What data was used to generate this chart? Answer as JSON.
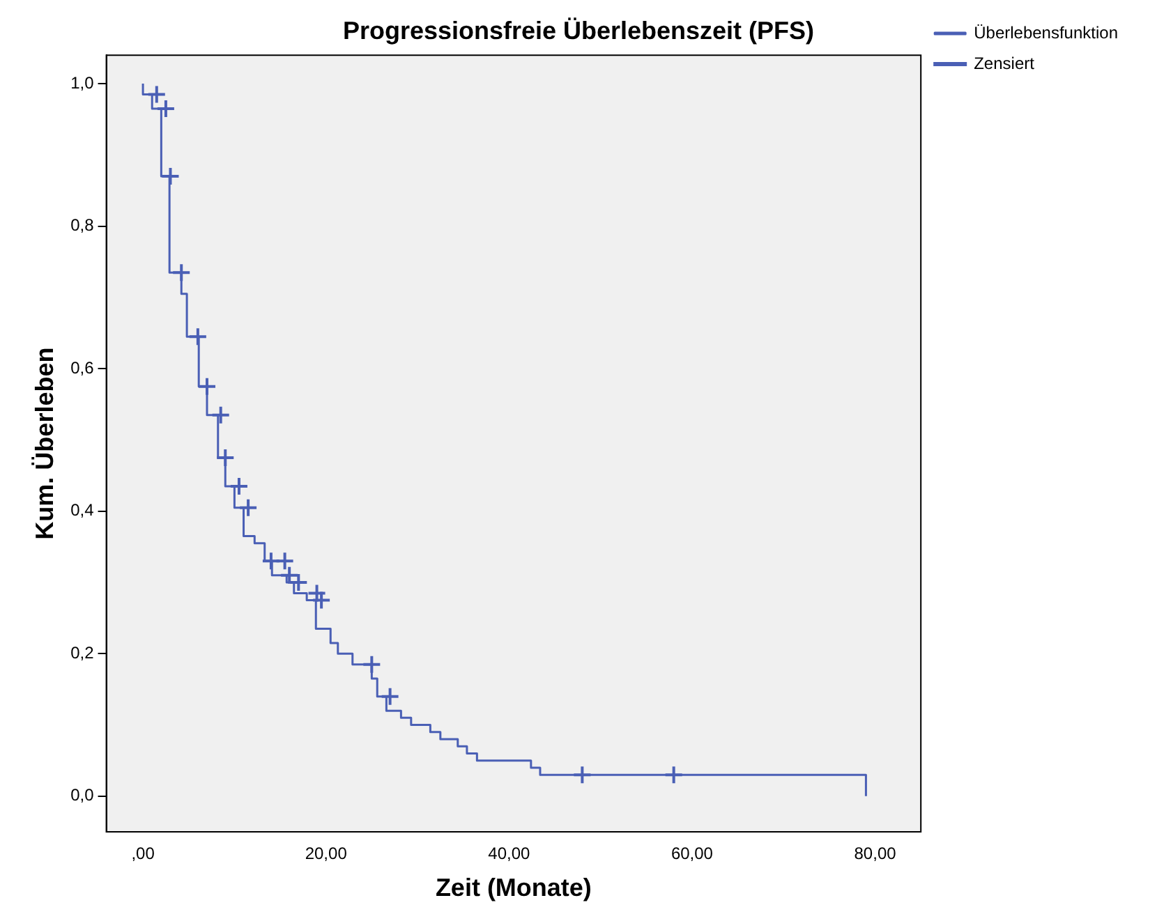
{
  "chart_data": {
    "type": "step",
    "title": "Progressionsfreie Überlebenszeit (PFS)",
    "xlabel": "Zeit (Monate)",
    "ylabel": "Kum. Überleben",
    "xlim": [
      -4,
      85
    ],
    "ylim": [
      -0.05,
      1.04
    ],
    "xticks": [
      {
        "value": 0,
        "label": ",00"
      },
      {
        "value": 20,
        "label": "20,00"
      },
      {
        "value": 40,
        "label": "40,00"
      },
      {
        "value": 60,
        "label": "60,00"
      },
      {
        "value": 80,
        "label": "80,00"
      }
    ],
    "yticks": [
      {
        "value": 0,
        "label": "0,0"
      },
      {
        "value": 0.2,
        "label": "0,2"
      },
      {
        "value": 0.4,
        "label": "0,4"
      },
      {
        "value": 0.6,
        "label": "0,6"
      },
      {
        "value": 0.8,
        "label": "0,8"
      },
      {
        "value": 1,
        "label": "1,0"
      }
    ],
    "grid": false,
    "legend": "top right",
    "marker": "none",
    "line_style": "solid",
    "series": [
      {
        "name": "Überlebensfunktion",
        "color": "#4a5fb5",
        "x": [
          0,
          1,
          2,
          2.9,
          4.2,
          4.8,
          6.1,
          7,
          8.2,
          9,
          10,
          11,
          12.2,
          13.3,
          14.1,
          15.7,
          16.5,
          17.9,
          18.9,
          20.5,
          21.3,
          22.9,
          25,
          25.6,
          26.6,
          28.2,
          29.3,
          31.4,
          32.5,
          34.4,
          35.4,
          36.5,
          42.4,
          43.4,
          48.5,
          79,
          79
        ],
        "values": [
          1,
          0.985,
          0.965,
          0.87,
          0.735,
          0.705,
          0.645,
          0.575,
          0.535,
          0.475,
          0.435,
          0.405,
          0.365,
          0.355,
          0.33,
          0.31,
          0.3,
          0.285,
          0.275,
          0.235,
          0.215,
          0.2,
          0.185,
          0.165,
          0.14,
          0.12,
          0.11,
          0.1,
          0.09,
          0.08,
          0.07,
          0.06,
          0.05,
          0.04,
          0.03,
          0.03,
          0
        ]
      },
      {
        "name": "Zensiert",
        "type": "scatter",
        "marker": "cross",
        "color": "#4a5fb5",
        "x": [
          1.5,
          2.5,
          3,
          4.2,
          6,
          7,
          8.5,
          9,
          10.5,
          11.5,
          14,
          15.5,
          16,
          17,
          19,
          19.5,
          25,
          27,
          48,
          58
        ],
        "values": [
          0.985,
          0.965,
          0.87,
          0.735,
          0.645,
          0.575,
          0.535,
          0.475,
          0.435,
          0.405,
          0.33,
          0.33,
          0.31,
          0.3,
          0.285,
          0.275,
          0.185,
          0.14,
          0.03,
          0.03
        ]
      }
    ]
  }
}
